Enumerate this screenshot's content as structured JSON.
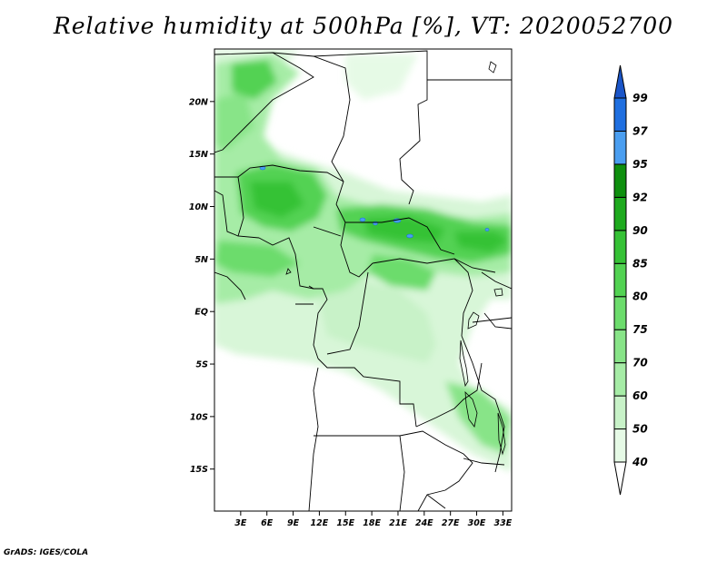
{
  "title": "Relative humidity at 500hPa [%], VT: 2020052700",
  "credit": "GrADS: IGES/COLA",
  "map": {
    "lat_range": [
      -19,
      25
    ],
    "lon_range": [
      0,
      34
    ],
    "lat_labels": [
      {
        "value": 20,
        "text": "20N"
      },
      {
        "value": 15,
        "text": "15N"
      },
      {
        "value": 10,
        "text": "10N"
      },
      {
        "value": 5,
        "text": "5N"
      },
      {
        "value": 0,
        "text": "EQ"
      },
      {
        "value": -5,
        "text": "5S"
      },
      {
        "value": -10,
        "text": "10S"
      },
      {
        "value": -15,
        "text": "15S"
      }
    ],
    "lon_labels": [
      {
        "value": 3,
        "text": "3E"
      },
      {
        "value": 6,
        "text": "6E"
      },
      {
        "value": 9,
        "text": "9E"
      },
      {
        "value": 12,
        "text": "12E"
      },
      {
        "value": 15,
        "text": "15E"
      },
      {
        "value": 18,
        "text": "18E"
      },
      {
        "value": 21,
        "text": "21E"
      },
      {
        "value": 24,
        "text": "24E"
      },
      {
        "value": 27,
        "text": "27E"
      },
      {
        "value": 30,
        "text": "30E"
      },
      {
        "value": 33,
        "text": "33E"
      }
    ]
  },
  "colorbar": {
    "levels": [
      "40",
      "50",
      "60",
      "70",
      "75",
      "80",
      "85",
      "90",
      "92",
      "95",
      "97",
      "99"
    ],
    "colors": [
      "#ffffff",
      "#e6fae6",
      "#c8f2c8",
      "#a6eca6",
      "#88e488",
      "#6cdc6c",
      "#52d252",
      "#36c236",
      "#1eaa1e",
      "#0e8f0e",
      "#4a9ef0",
      "#1f6fe0",
      "#1a55c8"
    ]
  }
}
